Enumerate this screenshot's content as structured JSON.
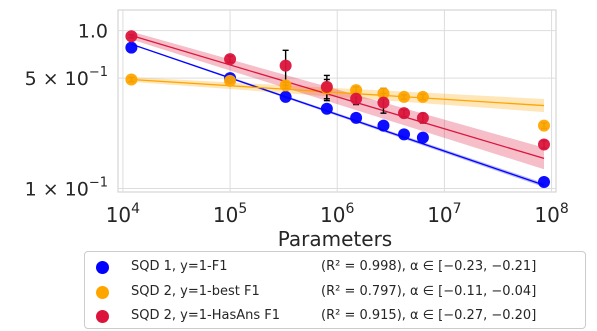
{
  "chart_data": {
    "type": "scatter",
    "xscale": "log",
    "yscale": "log",
    "xlabel": "Parameters",
    "ylabel": "",
    "xlim": [
      9000,
      110000000
    ],
    "ylim": [
      0.095,
      1.35
    ],
    "xticks": [
      {
        "value": 10000,
        "label": "10^4"
      },
      {
        "value": 100000,
        "label": "10^5"
      },
      {
        "value": 1000000,
        "label": "10^6"
      },
      {
        "value": 10000000,
        "label": "10^7"
      },
      {
        "value": 100000000,
        "label": "10^8"
      }
    ],
    "yticks": [
      {
        "value": 1.0,
        "label": "1.0"
      },
      {
        "value": 0.5,
        "label": "5 × 10^−1"
      },
      {
        "value": 0.1,
        "label": "1 × 10^−1"
      }
    ],
    "grid": true,
    "legend_position": "bottom",
    "series": [
      {
        "name": "SQD 1, y=1-F1",
        "stat": "(R² = 0.998), α ∈ [−0.23, −0.21]",
        "color": "#0000ff",
        "x": [
          12000,
          100000,
          330000,
          800000,
          1500000,
          2700000,
          4200000,
          6300000,
          85000000
        ],
        "y": [
          0.78,
          0.5,
          0.38,
          0.32,
          0.28,
          0.25,
          0.22,
          0.21,
          0.11
        ],
        "err": [
          0,
          0,
          0,
          0,
          0,
          0,
          0,
          0,
          0
        ],
        "fit": {
          "x": [
            12000,
            85000000
          ],
          "y": [
            0.82,
            0.105
          ]
        },
        "band": 0.03
      },
      {
        "name": "SQD 2, y=1-best F1",
        "stat": "(R² = 0.797), α ∈ [−0.11, −0.04]",
        "color": "#ffa500",
        "x": [
          12000,
          100000,
          330000,
          800000,
          1500000,
          2700000,
          4200000,
          6300000,
          85000000
        ],
        "y": [
          0.49,
          0.48,
          0.45,
          0.43,
          0.42,
          0.4,
          0.38,
          0.38,
          0.25
        ],
        "err": [
          0.015,
          0.01,
          0.02,
          0.06,
          0.02,
          0.03,
          0.012,
          0.015,
          0.01
        ],
        "fit": {
          "x": [
            12000,
            85000000
          ],
          "y": [
            0.49,
            0.335
          ]
        },
        "band": 0.1
      },
      {
        "name": "SQD 2, y=1-HasAns F1",
        "stat": "(R² = 0.915), α ∈ [−0.27, −0.20]",
        "color": "#dc143c",
        "x": [
          12000,
          100000,
          330000,
          800000,
          1500000,
          2700000,
          4200000,
          6300000,
          85000000
        ],
        "y": [
          0.92,
          0.66,
          0.6,
          0.44,
          0.37,
          0.35,
          0.3,
          0.28,
          0.19
        ],
        "err": [
          0.02,
          0.03,
          0.15,
          0.08,
          0.03,
          0.05,
          0.015,
          0.02,
          0.01
        ],
        "fit": {
          "x": [
            12000,
            85000000
          ],
          "y": [
            0.93,
            0.155
          ]
        },
        "band": 0.17
      }
    ]
  }
}
